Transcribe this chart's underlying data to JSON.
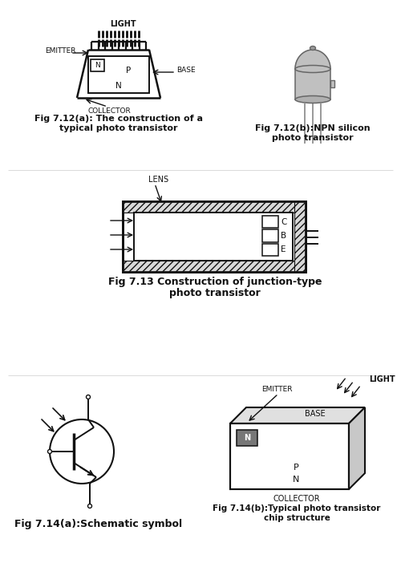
{
  "fig712a_cap1": "Fig 7.12(a): The construction of a",
  "fig712a_cap2": "typical photo transistor",
  "fig712b_cap1": "Fig 7.12(b):NPN silicon",
  "fig712b_cap2": "photo transistor",
  "fig713_cap1": "Fig 7.13 Construction of junction-type",
  "fig713_cap2": "photo transistor",
  "fig714a_cap": "Fig 7.14(a):Schematic symbol",
  "fig714b_cap1": "Fig 7.14(b):Typical photo transistor",
  "fig714b_cap2": "chip structure",
  "dark": "#111111",
  "lgray": "#c0c0c0",
  "mgray": "#999999",
  "dgray": "#666666",
  "hgray": "#d8d8d8"
}
